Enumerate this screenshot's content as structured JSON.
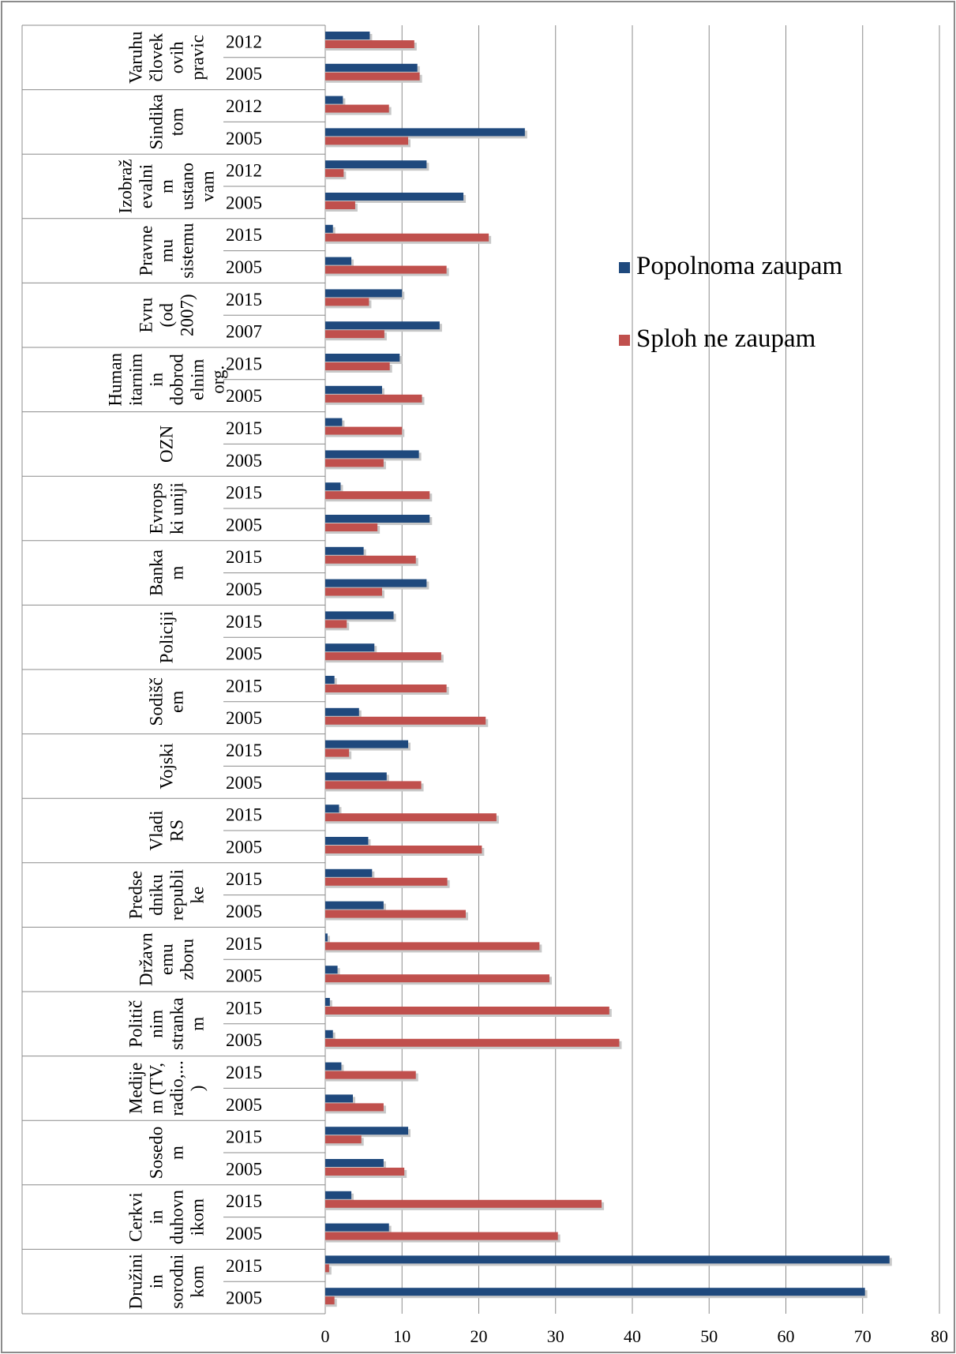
{
  "chart_data": {
    "type": "bar",
    "orientation": "horizontal",
    "title": "",
    "xlabel": "",
    "ylabel": "",
    "xlim": [
      0,
      80
    ],
    "x_ticks": [
      "0",
      "10",
      "20",
      "30",
      "40",
      "50",
      "60",
      "70",
      "80"
    ],
    "grid": "vertical",
    "legend_position": "right",
    "groups": [
      {
        "label": [
          "Varuhu",
          "človek",
          "ovih",
          "pravic"
        ],
        "years": [
          "2012",
          "2005"
        ]
      },
      {
        "label": [
          "Sindika",
          "tom"
        ],
        "years": [
          "2012",
          "2005"
        ]
      },
      {
        "label": [
          "Izobraž",
          "evalni",
          "m",
          "ustano",
          "vam"
        ],
        "years": [
          "2012",
          "2005"
        ]
      },
      {
        "label": [
          "Pravne",
          "mu",
          "sistemu"
        ],
        "years": [
          "2015",
          "2005"
        ]
      },
      {
        "label": [
          "Evru",
          "(od",
          "2007)"
        ],
        "years": [
          "2015",
          "2007"
        ]
      },
      {
        "label": [
          "Human",
          "itarnim",
          "in",
          "dobrod",
          "elnim",
          "org."
        ],
        "years": [
          "2015",
          "2005"
        ]
      },
      {
        "label": [
          "OZN"
        ],
        "years": [
          "2015",
          "2005"
        ]
      },
      {
        "label": [
          "Evrops",
          "ki uniji"
        ],
        "years": [
          "2015",
          "2005"
        ]
      },
      {
        "label": [
          "Banka",
          "m"
        ],
        "years": [
          "2015",
          "2005"
        ]
      },
      {
        "label": [
          "Policiji"
        ],
        "years": [
          "2015",
          "2005"
        ]
      },
      {
        "label": [
          "Sodišč",
          "em"
        ],
        "years": [
          "2015",
          "2005"
        ]
      },
      {
        "label": [
          "Vojski"
        ],
        "years": [
          "2015",
          "2005"
        ]
      },
      {
        "label": [
          "Vladi",
          "RS"
        ],
        "years": [
          "2015",
          "2005"
        ]
      },
      {
        "label": [
          "Predse",
          "dniku",
          "republi",
          "ke"
        ],
        "years": [
          "2015",
          "2005"
        ]
      },
      {
        "label": [
          "Državn",
          "emu",
          "zboru"
        ],
        "years": [
          "2015",
          "2005"
        ]
      },
      {
        "label": [
          "Politič",
          "nim",
          "stranka",
          "m"
        ],
        "years": [
          "2015",
          "2005"
        ]
      },
      {
        "label": [
          "Medije",
          "m (TV,",
          "radio,...",
          ")"
        ],
        "years": [
          "2015",
          "2005"
        ]
      },
      {
        "label": [
          "Sosedo",
          "m"
        ],
        "years": [
          "2015",
          "2005"
        ]
      },
      {
        "label": [
          "Cerkvi",
          "in",
          "duhovn",
          "ikom"
        ],
        "years": [
          "2015",
          "2005"
        ]
      },
      {
        "label": [
          "Družini",
          "in",
          "sorodni",
          "kom"
        ],
        "years": [
          "2015",
          "2005"
        ]
      }
    ],
    "series": [
      {
        "name": "Popolnoma zaupam",
        "color": "#1F497D",
        "values": [
          5.8,
          12,
          2.3,
          26,
          13.2,
          18,
          1,
          3.4,
          10,
          14.9,
          9.7,
          7.4,
          2.2,
          12.2,
          2,
          13.6,
          5,
          13.2,
          8.9,
          6.4,
          1.2,
          4.4,
          10.8,
          8,
          1.8,
          5.6,
          6.1,
          7.6,
          0.3,
          1.6,
          0.6,
          1,
          2.1,
          3.6,
          10.8,
          7.6,
          3.4,
          8.3,
          73.5,
          70.3
        ]
      },
      {
        "name": "Sploh ne zaupam",
        "color": "#C0504D",
        "values": [
          11.6,
          12.3,
          8.3,
          10.8,
          2.4,
          3.9,
          21.3,
          15.8,
          5.7,
          7.7,
          8.4,
          12.6,
          10,
          7.6,
          13.6,
          6.8,
          11.8,
          7.4,
          2.8,
          15.1,
          15.8,
          20.9,
          3.1,
          12.5,
          22.3,
          20.4,
          15.9,
          18.3,
          27.9,
          29.2,
          37,
          38.3,
          11.8,
          7.6,
          4.7,
          10.3,
          36,
          30.3,
          0.5,
          1.2
        ]
      }
    ]
  }
}
